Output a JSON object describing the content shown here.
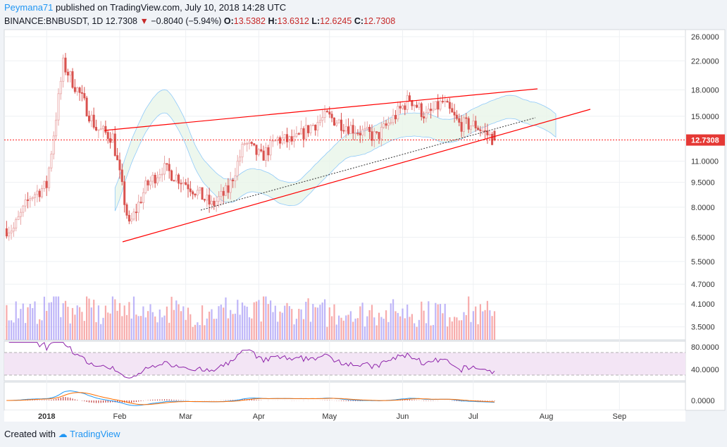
{
  "header": {
    "author": "Peymana71",
    "published": "published on TradingView.com, July 10, 2018 14:28 UTC"
  },
  "ohlc": {
    "symbol": "BINANCE:BNBUSDT, 1D",
    "last": "12.7308",
    "change": "−0.8040 (−5.94%)",
    "o_label": "O:",
    "o": "13.5382",
    "h_label": "H:",
    "h": "13.6312",
    "l_label": "L:",
    "l": "12.6245",
    "c_label": "C:",
    "c": "12.7308"
  },
  "footer": {
    "created_with": "Created with",
    "brand": "TradingView"
  },
  "colors": {
    "up": "#ef5350",
    "up_candle": "#e57373",
    "down": "#ef9a9a",
    "vol_up": "#f48f8f",
    "vol_down": "#a99ef5",
    "trend": "#ff0000",
    "rsi": "#8e24aa",
    "macd": "#2196f3",
    "signal": "#ff6d00",
    "cloud_green": "#e8f5e9",
    "cloud_red": "#ffcdd2"
  },
  "chart_data": {
    "type": "candlestick",
    "price_axis": {
      "scale": "log",
      "ticks": [
        "26.0000",
        "22.0000",
        "18.0000",
        "15.0000",
        "11.0000",
        "9.5000",
        "8.0000",
        "6.5000",
        "5.5000",
        "4.7000",
        "4.1000",
        "3.5000"
      ],
      "last_price_label": "12.7308"
    },
    "rsi_axis": {
      "ticks": [
        "80.0000",
        "40.0000"
      ]
    },
    "macd_axis": {
      "ticks": [
        "0.0000"
      ]
    },
    "time_axis": {
      "ticks": [
        "2018",
        "Feb",
        "Mar",
        "Apr",
        "May",
        "Jun",
        "Jul",
        "Aug",
        "Sep"
      ]
    },
    "approx_close_path": [
      {
        "date": "2017-12-18",
        "close": 6.9
      },
      {
        "date": "2017-12-25",
        "close": 8.6
      },
      {
        "date": "2018-01-01",
        "close": 9.3
      },
      {
        "date": "2018-01-08",
        "close": 21.5
      },
      {
        "date": "2018-01-15",
        "close": 17.5
      },
      {
        "date": "2018-01-22",
        "close": 13.8
      },
      {
        "date": "2018-01-29",
        "close": 13.0
      },
      {
        "date": "2018-02-05",
        "close": 7.0
      },
      {
        "date": "2018-02-12",
        "close": 9.2
      },
      {
        "date": "2018-02-19",
        "close": 10.5
      },
      {
        "date": "2018-02-26",
        "close": 9.8
      },
      {
        "date": "2018-03-05",
        "close": 9.0
      },
      {
        "date": "2018-03-12",
        "close": 8.1
      },
      {
        "date": "2018-03-19",
        "close": 9.0
      },
      {
        "date": "2018-03-26",
        "close": 12.5
      },
      {
        "date": "2018-04-02",
        "close": 11.3
      },
      {
        "date": "2018-04-09",
        "close": 12.8
      },
      {
        "date": "2018-04-16",
        "close": 12.6
      },
      {
        "date": "2018-04-23",
        "close": 14.0
      },
      {
        "date": "2018-04-30",
        "close": 15.0
      },
      {
        "date": "2018-05-07",
        "close": 14.2
      },
      {
        "date": "2018-05-14",
        "close": 13.5
      },
      {
        "date": "2018-05-21",
        "close": 13.0
      },
      {
        "date": "2018-05-28",
        "close": 14.8
      },
      {
        "date": "2018-06-04",
        "close": 17.0
      },
      {
        "date": "2018-06-11",
        "close": 15.0
      },
      {
        "date": "2018-06-18",
        "close": 16.5
      },
      {
        "date": "2018-06-25",
        "close": 14.2
      },
      {
        "date": "2018-07-02",
        "close": 14.1
      },
      {
        "date": "2018-07-10",
        "close": 12.73
      }
    ]
  }
}
